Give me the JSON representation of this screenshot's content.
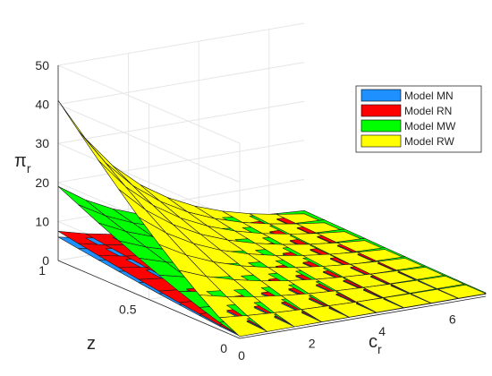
{
  "chart_data": {
    "type": "surface",
    "title": "",
    "xlabel": "c",
    "xlabel_sub": "r",
    "ylabel": "z",
    "zlabel": "π",
    "zlabel_sub": "r",
    "xlim": [
      0,
      7
    ],
    "ylim": [
      0,
      1
    ],
    "zlim": [
      0,
      50
    ],
    "x_ticks": [
      0,
      2,
      4,
      6
    ],
    "y_ticks": [
      0,
      0.5,
      1
    ],
    "z_ticks": [
      0,
      10,
      20,
      30,
      40,
      50
    ],
    "x_tick_labels": [
      "0",
      "2",
      "4",
      "6"
    ],
    "y_tick_labels": [
      "0",
      "0.5",
      "1"
    ],
    "z_tick_labels": [
      "0",
      "10",
      "20",
      "30",
      "40",
      "50"
    ],
    "grid": true,
    "legend_position": "top-right",
    "series": [
      {
        "name": "Model MN",
        "color": "#1e90ff",
        "x": [
          0,
          7
        ],
        "y": [
          0,
          1
        ],
        "corner_values": {
          "x0_y0": 0.6,
          "x7_y0": 0.6,
          "x0_y1": 6.0,
          "x7_y1": 0.8
        }
      },
      {
        "name": "Model RN",
        "color": "#ff0000",
        "x": [
          0,
          7
        ],
        "y": [
          0,
          1
        ],
        "corner_values": {
          "x0_y0": 0.8,
          "x7_y0": 0.8,
          "x0_y1": 7.5,
          "x7_y1": 0.9
        }
      },
      {
        "name": "Model MW",
        "color": "#00ff00",
        "x": [
          0,
          7
        ],
        "y": [
          0,
          1
        ],
        "corner_values": {
          "x0_y0": 0.7,
          "x7_y0": 0.9,
          "x0_y1": 19.0,
          "x7_y1": 2.0
        }
      },
      {
        "name": "Model RW",
        "color": "#ffff00",
        "x": [
          0,
          7
        ],
        "y": [
          0,
          1
        ],
        "corner_values": {
          "x0_y0": 0.5,
          "x7_y0": 0.7,
          "x0_y1": 41.0,
          "x7_y1": 1.2
        }
      }
    ]
  }
}
